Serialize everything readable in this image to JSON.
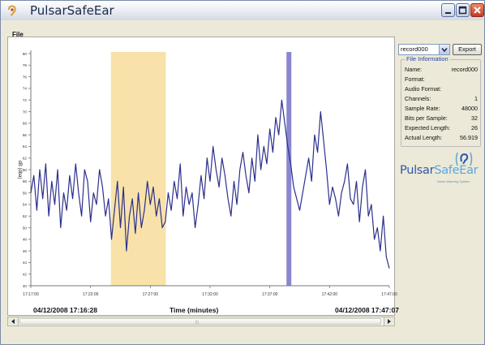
{
  "window": {
    "title": "PulsarSafeEar"
  },
  "menu": {
    "file": "File"
  },
  "toolbar": {
    "record_value": "record000",
    "export_label": "Export"
  },
  "file_info": {
    "title": "File Information",
    "rows": [
      {
        "label": "Name:",
        "value": "record000"
      },
      {
        "label": "Format:",
        "value": ""
      },
      {
        "label": "Audio Format:",
        "value": ""
      },
      {
        "label": "Channels:",
        "value": "1"
      },
      {
        "label": "Sample Rate:",
        "value": "48000"
      },
      {
        "label": "Bits per Sample:",
        "value": "32"
      },
      {
        "label": "Expected Length:",
        "value": "26"
      },
      {
        "label": "Actual Length:",
        "value": "56.919"
      }
    ]
  },
  "brand": {
    "name_part1": "Pulsar",
    "name_part2": "SafeEar",
    "tagline": "Noise Warning System"
  },
  "footer": {
    "start_time": "04/12/2008 17:16:28",
    "axis_label": "Time (minutes)",
    "end_time": "04/12/2008 17:47:07"
  },
  "colors": {
    "trace": "#2b2f8c",
    "highlight_band": "#f7dd9a",
    "marker_line": "#8a86d0",
    "close_button": "#d9542f"
  },
  "icons": {
    "app": "ear-icon",
    "minimize": "minimize-icon",
    "maximize": "maximize-icon",
    "close": "close-icon"
  },
  "chart_data": {
    "type": "line",
    "ylabel": "dB (dba)",
    "xlabel": "Time (minutes)",
    "ylim": [
      40,
      80
    ],
    "y_ticks": [
      40,
      42,
      44,
      46,
      48,
      50,
      52,
      54,
      56,
      58,
      60,
      62,
      64,
      66,
      68,
      70,
      72,
      74,
      76,
      78,
      80
    ],
    "x_tick_labels": [
      "17:17:00",
      "17:22:00",
      "17:27:00",
      "17:32:00",
      "17:37:00",
      "17:42:00",
      "17:47:00"
    ],
    "x_tick_minutes": [
      0,
      5,
      10,
      15,
      20,
      25,
      30
    ],
    "highlight_range": [
      6.7,
      11.3
    ],
    "marker_minute": 21.6,
    "series": [
      {
        "x": [
          0,
          0.25,
          0.5,
          0.75,
          1,
          1.25,
          1.5,
          1.75,
          2,
          2.25,
          2.5,
          2.75,
          3,
          3.25,
          3.5,
          3.75,
          4,
          4.25,
          4.5,
          4.75,
          5,
          5.25,
          5.5,
          5.75,
          6,
          6.25,
          6.5,
          6.75,
          7,
          7.25,
          7.5,
          7.75,
          8,
          8.25,
          8.5,
          8.75,
          9,
          9.25,
          9.5,
          9.75,
          10,
          10.25,
          10.5,
          10.75,
          11,
          11.25,
          11.5,
          11.75,
          12,
          12.25,
          12.5,
          12.75,
          13,
          13.25,
          13.5,
          13.75,
          14,
          14.25,
          14.5,
          14.75,
          15,
          15.25,
          15.5,
          15.75,
          16,
          16.25,
          16.5,
          16.75,
          17,
          17.25,
          17.5,
          17.75,
          18,
          18.25,
          18.5,
          18.75,
          19,
          19.25,
          19.5,
          19.75,
          20,
          20.25,
          20.5,
          20.75,
          21,
          21.25,
          21.5,
          21.75,
          22,
          22.25,
          22.5,
          22.75,
          23,
          23.25,
          23.5,
          23.75,
          24,
          24.25,
          24.5,
          24.75,
          25,
          25.25,
          25.5,
          25.75,
          26,
          26.25,
          26.5,
          26.75,
          27,
          27.25,
          27.5,
          27.75,
          28,
          28.25,
          28.5,
          28.75,
          29,
          29.25,
          29.5,
          29.75,
          30
        ],
        "y": [
          56,
          59,
          53,
          60,
          55,
          61,
          52,
          58,
          54,
          60,
          50,
          56,
          53,
          59,
          55,
          61,
          56,
          52,
          60,
          58,
          51,
          56,
          54,
          60,
          57,
          52,
          55,
          48,
          53,
          58,
          50,
          57,
          46,
          52,
          55,
          49,
          56,
          50,
          53,
          58,
          54,
          57,
          52,
          55,
          50,
          51,
          56,
          53,
          58,
          55,
          61,
          52,
          57,
          54,
          56,
          50,
          54,
          59,
          55,
          62,
          58,
          64,
          60,
          57,
          62,
          59,
          55,
          52,
          58,
          54,
          60,
          63,
          59,
          56,
          62,
          58,
          66,
          60,
          64,
          61,
          67,
          63,
          69,
          66,
          72,
          68,
          64,
          61,
          57,
          55,
          53,
          56,
          59,
          62,
          58,
          66,
          63,
          70,
          65,
          60,
          54,
          57,
          55,
          52,
          56,
          58,
          61,
          55,
          54,
          58,
          51,
          57,
          60,
          52,
          54,
          48,
          50,
          46,
          52,
          45,
          43
        ]
      }
    ]
  }
}
